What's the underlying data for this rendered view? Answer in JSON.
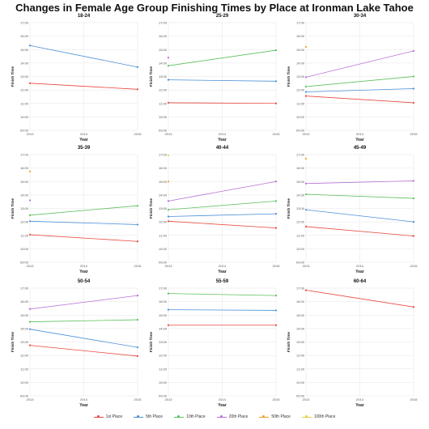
{
  "title": "Changes in Female Age Group Finishing Times by Place at Ironman Lake Tahoe",
  "legend_items": [
    {
      "label": "1st Place",
      "color": "#e8493f"
    },
    {
      "label": "5th Place",
      "color": "#4a90d9"
    },
    {
      "label": "10th Place",
      "color": "#5cbf5c"
    },
    {
      "label": "20th Place",
      "color": "#b66fd6"
    },
    {
      "label": "50th Place",
      "color": "#f0a020"
    },
    {
      "label": "100th Place",
      "color": "#e8d040"
    }
  ],
  "chart_data": [
    {
      "type": "line",
      "title": "18-24",
      "xlabel": "Year",
      "ylabel": "Finish Time",
      "x": [
        2013,
        2015
      ],
      "xticks": [
        "2013",
        "2014",
        "2015"
      ],
      "yticks": [
        "09:00",
        "10:00",
        "11:00",
        "12:00",
        "13:00",
        "14:00",
        "15:00",
        "16:00",
        "17:00"
      ],
      "ylim": [
        9,
        17
      ],
      "series": [
        {
          "name": "1st Place",
          "values": [
            12.5,
            12.05
          ]
        },
        {
          "name": "5th Place",
          "values": [
            15.3,
            13.7
          ]
        }
      ]
    },
    {
      "type": "line",
      "title": "25-29",
      "xlabel": "Year",
      "ylabel": "Finish Time",
      "x": [
        2013,
        2015
      ],
      "xticks": [
        "2013",
        "2014",
        "2015"
      ],
      "yticks": [
        "09:00",
        "10:00",
        "11:00",
        "12:00",
        "13:00",
        "14:00",
        "15:00",
        "16:00",
        "17:00"
      ],
      "ylim": [
        9,
        17
      ],
      "series": [
        {
          "name": "1st Place",
          "values": [
            11.05,
            11.0
          ]
        },
        {
          "name": "5th Place",
          "values": [
            12.75,
            12.65
          ]
        },
        {
          "name": "10th Place",
          "values": [
            13.8,
            14.95
          ]
        },
        {
          "name": "20th Place",
          "values": [
            14.4,
            null
          ]
        }
      ]
    },
    {
      "type": "line",
      "title": "30-34",
      "xlabel": "Year",
      "ylabel": "Finish Time",
      "x": [
        2013,
        2015
      ],
      "xticks": [
        "2013",
        "2014",
        "2015"
      ],
      "yticks": [
        "09:00",
        "10:00",
        "11:00",
        "12:00",
        "13:00",
        "14:00",
        "15:00",
        "16:00",
        "17:00"
      ],
      "ylim": [
        9,
        17
      ],
      "series": [
        {
          "name": "1st Place",
          "values": [
            11.55,
            11.05
          ]
        },
        {
          "name": "5th Place",
          "values": [
            11.85,
            12.1
          ]
        },
        {
          "name": "10th Place",
          "values": [
            12.25,
            13.0
          ]
        },
        {
          "name": "20th Place",
          "values": [
            12.95,
            14.9
          ]
        },
        {
          "name": "50th Place",
          "values": [
            15.2,
            null
          ]
        }
      ]
    },
    {
      "type": "line",
      "title": "35-39",
      "xlabel": "Year",
      "ylabel": "Finish Time",
      "x": [
        2013,
        2015
      ],
      "xticks": [
        "2013",
        "2014",
        "2015"
      ],
      "yticks": [
        "09:00",
        "10:00",
        "11:00",
        "12:00",
        "13:00",
        "14:00",
        "15:00",
        "16:00",
        "17:00"
      ],
      "ylim": [
        9,
        17
      ],
      "series": [
        {
          "name": "1st Place",
          "values": [
            11.05,
            10.55
          ]
        },
        {
          "name": "5th Place",
          "values": [
            12.05,
            11.8
          ]
        },
        {
          "name": "10th Place",
          "values": [
            12.5,
            13.2
          ]
        },
        {
          "name": "20th Place",
          "values": [
            13.6,
            null
          ]
        },
        {
          "name": "50th Place",
          "values": [
            15.75,
            null
          ]
        }
      ]
    },
    {
      "type": "line",
      "title": "40-44",
      "xlabel": "Year",
      "ylabel": "Finish Time",
      "x": [
        2013,
        2015
      ],
      "xticks": [
        "2013",
        "2014",
        "2015"
      ],
      "yticks": [
        "09:00",
        "10:00",
        "11:00",
        "12:00",
        "13:00",
        "14:00",
        "15:00",
        "16:00",
        "17:00"
      ],
      "ylim": [
        9,
        17
      ],
      "series": [
        {
          "name": "1st Place",
          "values": [
            12.05,
            11.55
          ]
        },
        {
          "name": "5th Place",
          "values": [
            12.4,
            12.6
          ]
        },
        {
          "name": "10th Place",
          "values": [
            12.9,
            13.55
          ]
        },
        {
          "name": "20th Place",
          "values": [
            13.55,
            15.0
          ]
        },
        {
          "name": "50th Place",
          "values": [
            15.0,
            null
          ]
        },
        {
          "name": "100th Place",
          "values": [
            16.95,
            null
          ]
        }
      ]
    },
    {
      "type": "line",
      "title": "45-49",
      "xlabel": "Year",
      "ylabel": "Finish Time",
      "x": [
        2013,
        2015
      ],
      "xticks": [
        "2013",
        "2014",
        "2015"
      ],
      "yticks": [
        "09:00",
        "10:00",
        "11:00",
        "12:00",
        "13:00",
        "14:00",
        "15:00",
        "16:00",
        "17:00"
      ],
      "ylim": [
        9,
        17
      ],
      "series": [
        {
          "name": "1st Place",
          "values": [
            11.65,
            10.95
          ]
        },
        {
          "name": "5th Place",
          "values": [
            12.9,
            12.0
          ]
        },
        {
          "name": "10th Place",
          "values": [
            14.05,
            13.75
          ]
        },
        {
          "name": "20th Place",
          "values": [
            14.85,
            15.05
          ]
        },
        {
          "name": "50th Place",
          "values": [
            16.7,
            null
          ]
        }
      ]
    },
    {
      "type": "line",
      "title": "50-54",
      "xlabel": "Year",
      "ylabel": "Finish Time",
      "x": [
        2013,
        2015
      ],
      "xticks": [
        "2013",
        "2014",
        "2015"
      ],
      "yticks": [
        "09:00",
        "10:00",
        "11:00",
        "12:00",
        "13:00",
        "14:00",
        "15:00",
        "16:00",
        "17:00"
      ],
      "ylim": [
        9,
        17
      ],
      "series": [
        {
          "name": "1st Place",
          "values": [
            12.75,
            11.95
          ]
        },
        {
          "name": "5th Place",
          "values": [
            13.95,
            12.6
          ]
        },
        {
          "name": "10th Place",
          "values": [
            14.5,
            14.65
          ]
        },
        {
          "name": "20th Place",
          "values": [
            15.45,
            16.45
          ]
        }
      ]
    },
    {
      "type": "line",
      "title": "55-59",
      "xlabel": "Year",
      "ylabel": "Finish Time",
      "x": [
        2013,
        2015
      ],
      "xticks": [
        "2013",
        "2014",
        "2015"
      ],
      "yticks": [
        "09:00",
        "10:00",
        "11:00",
        "12:00",
        "13:00",
        "14:00",
        "15:00",
        "16:00",
        "17:00"
      ],
      "ylim": [
        9,
        17
      ],
      "series": [
        {
          "name": "1st Place",
          "values": [
            14.25,
            14.25
          ]
        },
        {
          "name": "5th Place",
          "values": [
            15.4,
            15.35
          ]
        },
        {
          "name": "10th Place",
          "values": [
            16.6,
            16.45
          ]
        }
      ]
    },
    {
      "type": "line",
      "title": "60-64",
      "xlabel": "Year",
      "ylabel": "Finish Time",
      "x": [
        2013,
        2015
      ],
      "xticks": [
        "2013",
        "2014",
        "2015"
      ],
      "yticks": [
        "09:00",
        "10:00",
        "11:00",
        "12:00",
        "13:00",
        "14:00",
        "15:00",
        "16:00",
        "17:00"
      ],
      "ylim": [
        9,
        17
      ],
      "series": [
        {
          "name": "1st Place",
          "values": [
            16.85,
            15.6
          ]
        }
      ]
    }
  ]
}
